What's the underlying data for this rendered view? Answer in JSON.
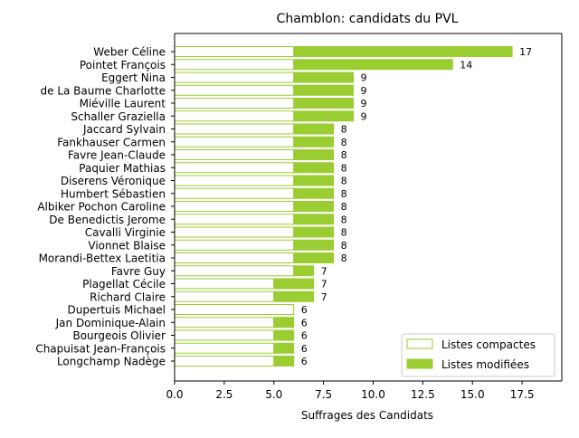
{
  "chart_data": {
    "type": "bar",
    "orientation": "horizontal",
    "stacked": true,
    "title": "Chamblon: candidats du PVL",
    "xlabel": "Suffrages des Candidats",
    "ylabel": "",
    "xlim": [
      0,
      19.5
    ],
    "xticks": [
      0,
      2.5,
      5,
      7.5,
      10,
      12.5,
      15,
      17.5
    ],
    "xtick_labels": [
      "0.0",
      "2.5",
      "5.0",
      "7.5",
      "10.0",
      "12.5",
      "15.0",
      "17.5"
    ],
    "grid": false,
    "legend_position": "lower-right",
    "colors": {
      "accent": "#9acd32",
      "compact_fill": "#ffffff",
      "axis": "#000000"
    },
    "categories": [
      "Weber Céline",
      "Pointet François",
      "Eggert Nina",
      "de La Baume Charlotte",
      "Miéville Laurent",
      "Schaller Graziella",
      "Jaccard Sylvain",
      "Fankhauser Carmen",
      "Favre Jean-Claude",
      "Paquier Mathias",
      "Diserens Véronique",
      "Humbert Sébastien",
      "Albiker Pochon Caroline",
      "De Benedictis Jerome",
      "Cavalli Virginie",
      "Vionnet Blaise",
      "Morandi-Bettex Laetitia",
      "Favre Guy",
      "Plagellat Cécile",
      "Richard Claire",
      "Dupertuis Michael",
      "Jan Dominique-Alain",
      "Bourgeois Olivier",
      "Chapuisat Jean-François",
      "Longchamp Nadège"
    ],
    "series": [
      {
        "name": "Listes compactes",
        "values": [
          6,
          6,
          6,
          6,
          6,
          6,
          6,
          6,
          6,
          6,
          6,
          6,
          6,
          6,
          6,
          6,
          6,
          6,
          5,
          5,
          6,
          5,
          5,
          5,
          5
        ]
      },
      {
        "name": "Listes modifiées",
        "values": [
          11,
          8,
          3,
          3,
          3,
          3,
          2,
          2,
          2,
          2,
          2,
          2,
          2,
          2,
          2,
          2,
          2,
          1,
          2,
          2,
          0,
          1,
          1,
          1,
          1
        ]
      }
    ],
    "totals": [
      17,
      14,
      9,
      9,
      9,
      9,
      8,
      8,
      8,
      8,
      8,
      8,
      8,
      8,
      8,
      8,
      8,
      7,
      7,
      7,
      6,
      6,
      6,
      6,
      6
    ]
  }
}
